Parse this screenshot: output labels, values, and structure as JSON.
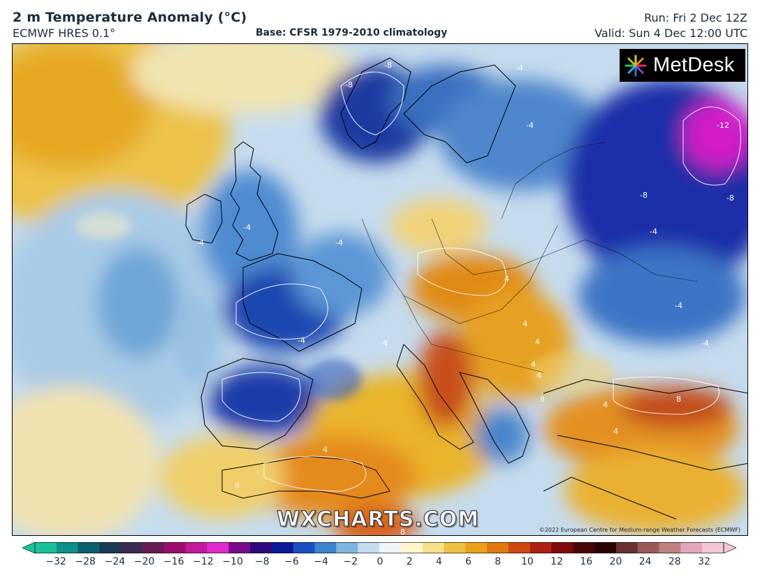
{
  "header": {
    "title": "2 m Temperature Anomaly (°C)",
    "model": "ECMWF HRES 0.1°",
    "base": "Base: CFSR 1979-2010 climatology",
    "run": "Run: Fri 2 Dec 12Z",
    "valid": "Valid: Sun 4 Dec 12:00 UTC"
  },
  "logo": {
    "name": "MetDesk",
    "icon": "metdesk-pinwheel-icon"
  },
  "watermark": "WXCHARTS.COM",
  "copyright": "©2022 European Centre for Medium-range Weather Forecasts (ECMWF)",
  "contour_labels": [
    "-8",
    "-8",
    "-4",
    "-4",
    "-12",
    "-8",
    "-8",
    "-4",
    "-4",
    "-4",
    "-4",
    "-4",
    "-4",
    "-4",
    "4",
    "4",
    "4",
    "4",
    "4",
    "4",
    "8",
    "8",
    "4",
    "4",
    "4",
    "4",
    "8"
  ],
  "colorbar": {
    "ticks": [
      "−32",
      "−28",
      "−24",
      "−20",
      "−16",
      "−12",
      "−10",
      "−8",
      "−6",
      "−4",
      "−2",
      "0",
      "2",
      "4",
      "6",
      "8",
      "10",
      "12",
      "16",
      "20",
      "24",
      "28",
      "32"
    ],
    "colors": [
      "#19c39a",
      "#0e8f8a",
      "#0b5f6e",
      "#1a3b55",
      "#3d2a52",
      "#6a1a55",
      "#9b0e6e",
      "#c21a9a",
      "#e02cd0",
      "#7a0a8a",
      "#300a7a",
      "#0a1a9a",
      "#1c4fc0",
      "#3d85cc",
      "#7fb5de",
      "#c3dcee",
      "#eef5fb",
      "#fff6d0",
      "#f6e08a",
      "#f0c040",
      "#eaa018",
      "#e07a10",
      "#cf4a10",
      "#b02010",
      "#800a0a",
      "#4a0505",
      "#2a0202",
      "#6a3030",
      "#9a5a5a",
      "#c08080",
      "#e0a8b8",
      "#f2c8d8"
    ]
  }
}
